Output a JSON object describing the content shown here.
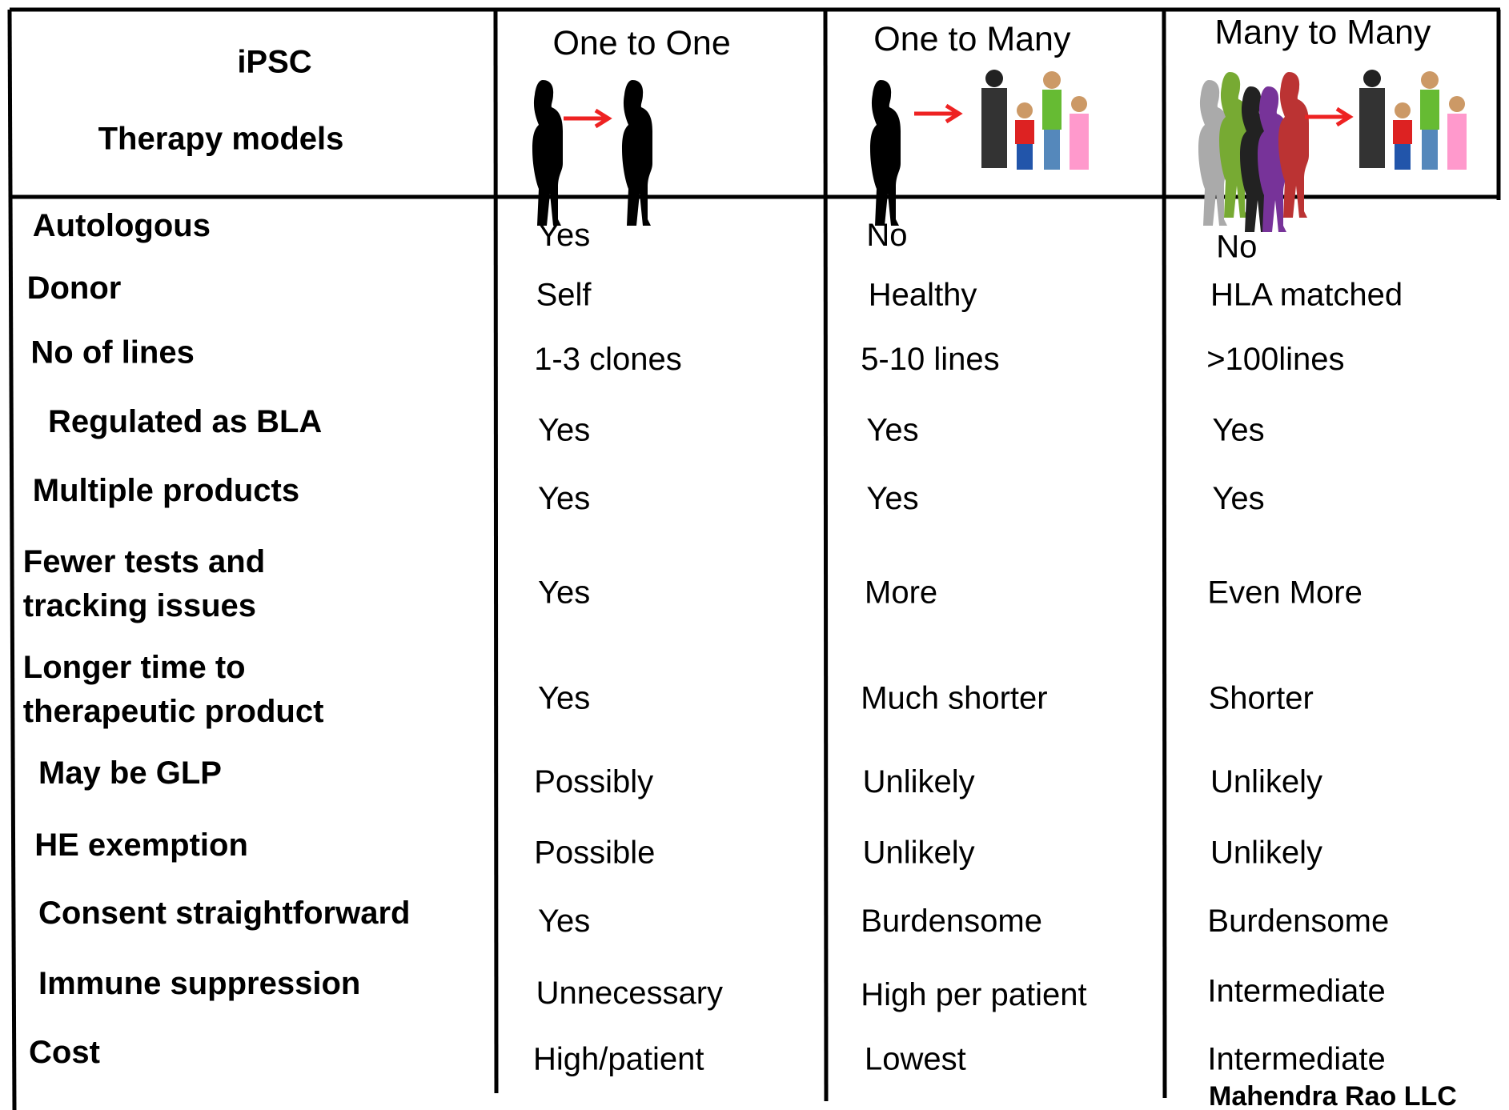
{
  "header": {
    "title": [
      "iPSC",
      "Therapy models"
    ],
    "columns": [
      "One to One",
      "One to Many",
      "Many to Many"
    ]
  },
  "table": {
    "rows": [
      {
        "label": [
          "Autologous"
        ],
        "cells": [
          "Yes",
          "No",
          "No"
        ]
      },
      {
        "label": [
          "Donor"
        ],
        "cells": [
          "Self",
          "Healthy",
          "HLA matched"
        ]
      },
      {
        "label": [
          "No of lines"
        ],
        "cells": [
          "1-3 clones",
          "5-10 lines",
          ">100lines"
        ]
      },
      {
        "label": [
          "Regulated as BLA"
        ],
        "cells": [
          "Yes",
          "Yes",
          "Yes"
        ]
      },
      {
        "label": [
          "Multiple products"
        ],
        "cells": [
          "Yes",
          "Yes",
          "Yes"
        ]
      },
      {
        "label": [
          "Fewer tests and",
          "tracking issues"
        ],
        "cells": [
          "Yes",
          "More",
          "Even More"
        ]
      },
      {
        "label": [
          "Longer time to",
          "therapeutic product"
        ],
        "cells": [
          "Yes",
          "Much shorter",
          "Shorter"
        ]
      },
      {
        "label": [
          "May be GLP"
        ],
        "cells": [
          "Possibly",
          "Unlikely",
          "Unlikely"
        ]
      },
      {
        "label": [
          "HE exemption"
        ],
        "cells": [
          "Possible",
          "Unlikely",
          "Unlikely"
        ]
      },
      {
        "label": [
          "Consent straightforward"
        ],
        "cells": [
          "Yes",
          "Burdensome",
          "Burdensome"
        ]
      },
      {
        "label": [
          "Immune suppression"
        ],
        "cells": [
          "Unnecessary",
          "High per patient",
          "Intermediate"
        ]
      },
      {
        "label": [
          "Cost"
        ],
        "cells": [
          "High/patient",
          "Lowest",
          "Intermediate"
        ]
      }
    ]
  },
  "footer": {
    "credit": "Mahendra Rao LLC"
  }
}
